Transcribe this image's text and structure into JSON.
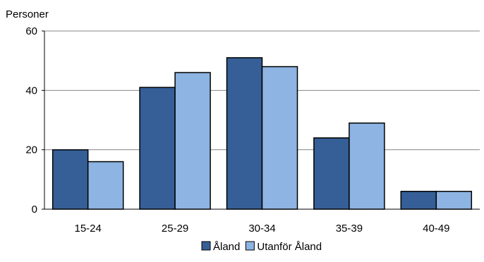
{
  "chart_data": {
    "type": "bar",
    "ylabel": "Personer",
    "xlabel": "",
    "ylim": [
      0,
      60
    ],
    "yticks": [
      0,
      20,
      40,
      60
    ],
    "grid": true,
    "legend_position": "bottom",
    "categories": [
      "15-24",
      "25-29",
      "30-34",
      "35-39",
      "40-49"
    ],
    "series": [
      {
        "name": "Åland",
        "color": "#355f96",
        "values": [
          20,
          41,
          51,
          24,
          6
        ]
      },
      {
        "name": "Utanför Åland",
        "color": "#8db4e2",
        "values": [
          16,
          46,
          48,
          29,
          6
        ]
      }
    ]
  }
}
